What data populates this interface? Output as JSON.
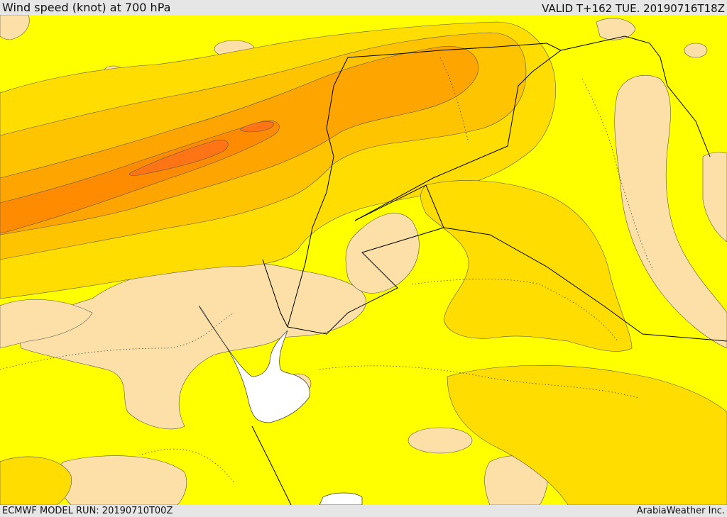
{
  "header": {
    "title": "Wind speed (knot) at 700 hPa",
    "valid": "VALID T+162 TUE. 20190716T18Z"
  },
  "footer": {
    "model_run": "ECMWF MODEL RUN: 20190710T00Z",
    "credit": "ArabiaWeather Inc."
  },
  "map": {
    "colors": {
      "background": "#ffff00",
      "light_wind": "#fde0a8",
      "band_1": "#ffdd00",
      "band_2": "#ffc400",
      "band_3": "#ffa500",
      "band_4": "#ff8c00",
      "core": "#ff7415",
      "water": "#ffffff",
      "border": "#000000"
    }
  }
}
